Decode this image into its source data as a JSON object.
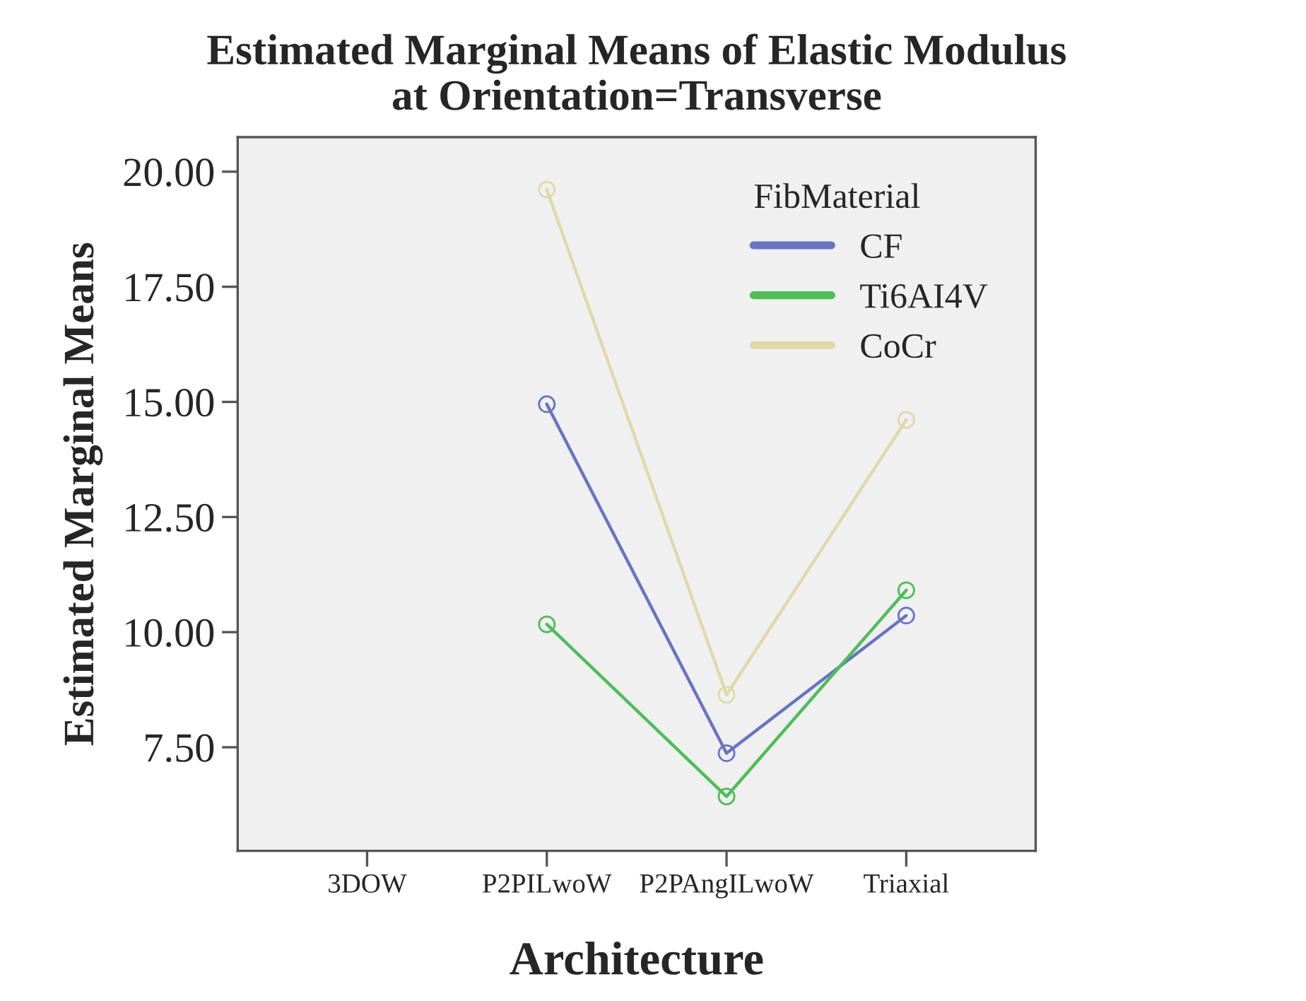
{
  "chart_data": {
    "type": "line",
    "title": "Estimated Marginal Means of Elastic Modulus\nat Orientation=Transverse",
    "xlabel": "Architecture",
    "ylabel": "Estimated Marginal Means",
    "legend_title": "FibMaterial",
    "categories": [
      "3DOW",
      "P2PILwoW",
      "P2PAngILwoW",
      "Triaxial"
    ],
    "series": [
      {
        "name": "CF",
        "color": "#6674c4",
        "values": [
          null,
          14.95,
          7.37,
          10.36
        ]
      },
      {
        "name": "Ti6AI4V",
        "color": "#4cbf55",
        "values": [
          null,
          10.17,
          6.43,
          10.91
        ]
      },
      {
        "name": "CoCr",
        "color": "#e0d9a8",
        "values": [
          null,
          19.61,
          8.64,
          14.61
        ]
      }
    ],
    "ylim": [
      5.25,
      20.75
    ],
    "yticks": [
      {
        "value": 7.5,
        "label": "7.50"
      },
      {
        "value": 10,
        "label": "10.00"
      },
      {
        "value": 12.5,
        "label": "12.50"
      },
      {
        "value": 15,
        "label": "15.00"
      },
      {
        "value": 17.5,
        "label": "17.50"
      },
      {
        "value": 20,
        "label": "20.00"
      }
    ],
    "grid": false,
    "legend": "top right",
    "marker": "circle",
    "line_style": "solid"
  }
}
